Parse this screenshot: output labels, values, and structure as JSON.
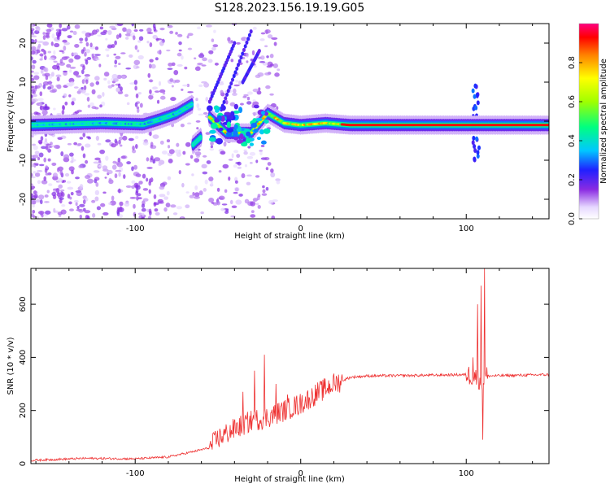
{
  "title": "S128.2023.156.19.19.G05",
  "chart_data": [
    {
      "type": "heatmap",
      "xlabel": "Height of straight line (km)",
      "ylabel": "Frequency (Hz)",
      "xlim": [
        -163,
        150
      ],
      "ylim": [
        -25,
        25
      ],
      "x_ticks": [
        -100,
        0,
        100
      ],
      "y_ticks": [
        -20,
        -10,
        0,
        10,
        20
      ],
      "colorbar": {
        "label": "Normalized spectral amplitude",
        "ticks": [
          "0.0",
          "0.2",
          "0.4",
          "0.6",
          "0.8"
        ],
        "range": [
          0,
          1
        ]
      },
      "features": [
        {
          "name": "main-line",
          "points": [
            [
              -163,
              -1
            ],
            [
              -120,
              -0.5
            ],
            [
              -95,
              -0.8
            ],
            [
              -85,
              0.5
            ],
            [
              -75,
              2
            ],
            [
              -65,
              4.5
            ]
          ],
          "amp": 0.35
        },
        {
          "name": "segment-2",
          "points": [
            [
              -65,
              -6
            ],
            [
              -60,
              -4
            ]
          ],
          "amp": 0.4
        },
        {
          "name": "segment-3",
          "points": [
            [
              -55,
              1
            ],
            [
              -45,
              -3
            ],
            [
              -30,
              -3
            ],
            [
              -20,
              2
            ],
            [
              -10,
              -0.5
            ],
            [
              0,
              -1
            ],
            [
              15,
              -0.5
            ],
            [
              30,
              -1
            ],
            [
              80,
              -1
            ],
            [
              100,
              -1
            ],
            [
              150,
              -1
            ]
          ],
          "amp": 0.9
        }
      ]
    },
    {
      "type": "line",
      "xlabel": "Height of straight line (km)",
      "ylabel": "SNR (10 * v/v)",
      "xlim": [
        -163,
        150
      ],
      "ylim": [
        0,
        735
      ],
      "x_ticks": [
        -100,
        0,
        100
      ],
      "y_ticks": [
        0,
        200,
        400,
        600
      ],
      "series": [
        {
          "color": "#ee3030",
          "trend": [
            [
              -163,
              12
            ],
            [
              -130,
              20
            ],
            [
              -100,
              18
            ],
            [
              -80,
              25
            ],
            [
              -65,
              45
            ],
            [
              -55,
              60
            ],
            [
              -50,
              95
            ],
            [
              -40,
              130
            ],
            [
              -30,
              160
            ],
            [
              -20,
              175
            ],
            [
              -10,
              200
            ],
            [
              0,
              225
            ],
            [
              10,
              265
            ],
            [
              20,
              300
            ],
            [
              30,
              325
            ],
            [
              40,
              330
            ],
            [
              70,
              332
            ],
            [
              100,
              335
            ],
            [
              105,
              330
            ],
            [
              110,
              310
            ],
            [
              112,
              330
            ],
            [
              150,
              335
            ]
          ],
          "spikes": [
            [
              -35,
              270
            ],
            [
              -28,
              350
            ],
            [
              -22,
              410
            ],
            [
              -15,
              300
            ],
            [
              -8,
              260
            ],
            [
              5,
              250
            ],
            [
              104,
              400
            ],
            [
              107,
              600
            ],
            [
              109,
              670
            ],
            [
              111,
              735
            ],
            [
              110,
              90
            ]
          ]
        }
      ]
    }
  ]
}
